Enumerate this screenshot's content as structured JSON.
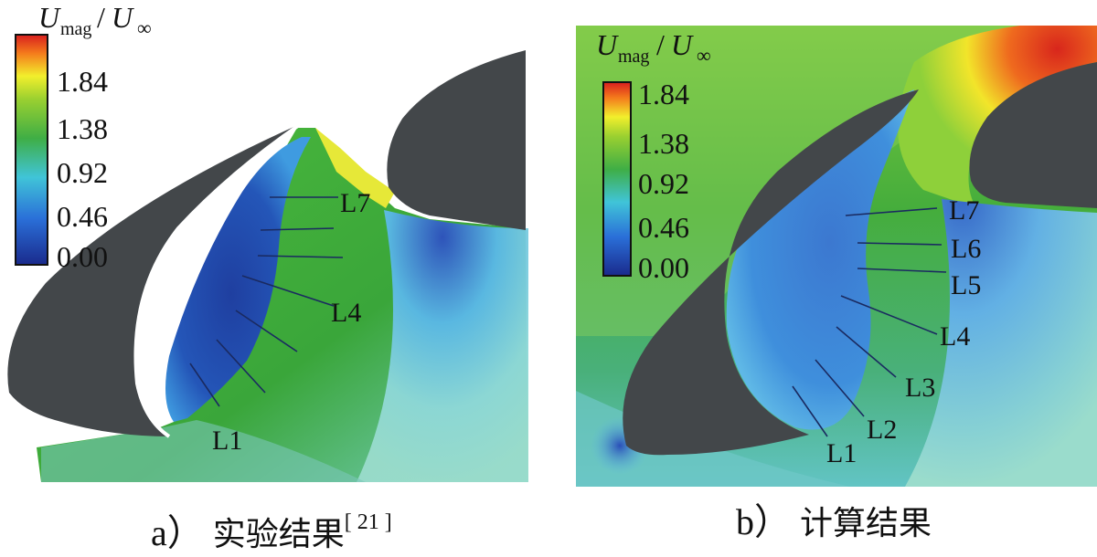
{
  "colorbar": {
    "title": "U",
    "title_sub": "mag",
    "title_denominator": "U",
    "title_denominator_sub": "∞",
    "ticks": [
      "1.84",
      "1.38",
      "0.92",
      "0.46",
      "0.00"
    ]
  },
  "panel_a": {
    "lines": {
      "l7": "L7",
      "l4": "L4",
      "l1": "L1"
    },
    "caption_letter": "a）",
    "caption_text": "实验结果",
    "caption_ref": "[ 21 ]"
  },
  "panel_b": {
    "lines": {
      "l7": "L7",
      "l6": "L6",
      "l5": "L5",
      "l4": "L4",
      "l3": "L3",
      "l2": "L2",
      "l1": "L1"
    },
    "caption_letter": "b）",
    "caption_text": "计算结果"
  },
  "colors": {
    "airfoil": "#43474a",
    "low_speed": "#1f47a6",
    "mid_speed": "#3aa63a",
    "high_speed": "#e8321e"
  }
}
